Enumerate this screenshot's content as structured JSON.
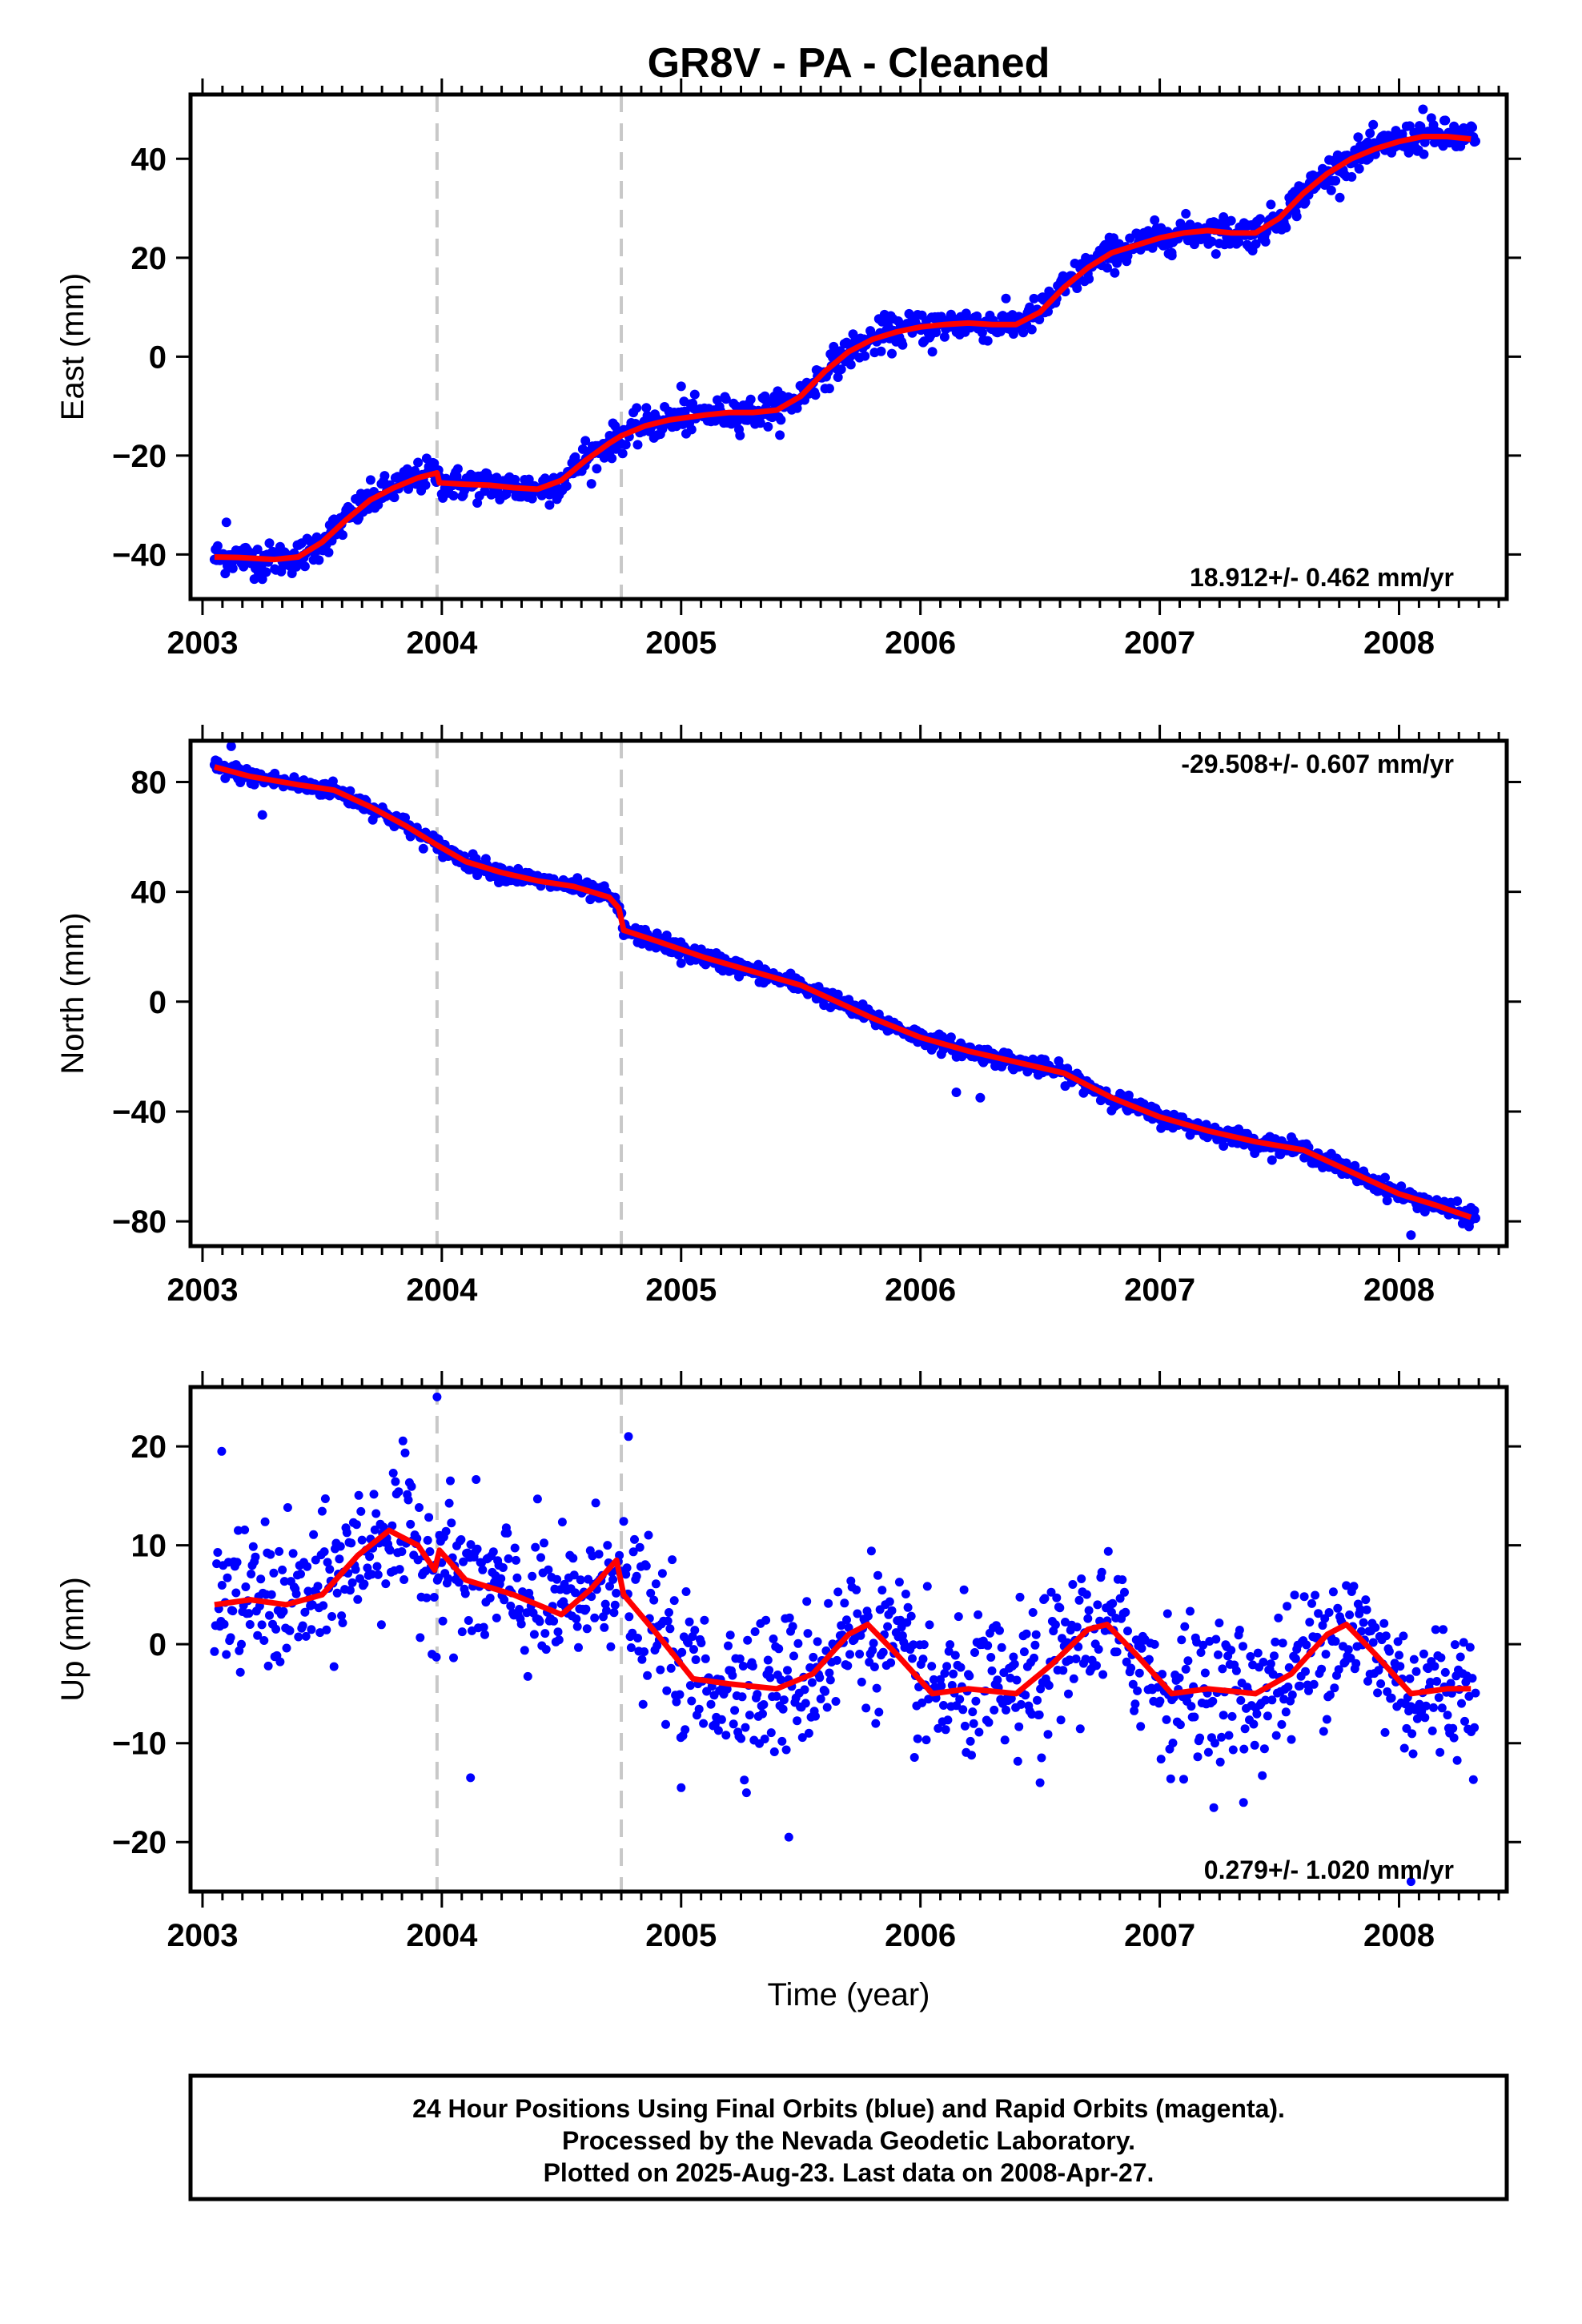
{
  "title": "GR8V  - PA - Cleaned",
  "footer": {
    "line1": "24 Hour Positions Using Final Orbits (blue) and Rapid Orbits (magenta).",
    "line2": "Processed by the Nevada Geodetic Laboratory.",
    "line3": "Plotted on 2025-Aug-23. Last data on 2008-Apr-27."
  },
  "colors": {
    "data": "#0000ff",
    "model": "#ff0000",
    "steps": "#c8c8c8",
    "frame": "#000000"
  },
  "chart_data": [
    {
      "type": "scatter",
      "ylabel": "East (mm)",
      "xlabel": "",
      "xlim": [
        2002.95,
        2008.45
      ],
      "ylim": [
        -49,
        53
      ],
      "yticks": [
        -40,
        -20,
        0,
        20,
        40
      ],
      "xticks": [
        2003,
        2004,
        2005,
        2006,
        2007,
        2008
      ],
      "xtick_labels": [
        "2003",
        "2004",
        "2005",
        "2006",
        "2007",
        "2008"
      ],
      "rate": "18.912+/- 0.462 mm/yr",
      "rate_position": "bottom-right",
      "step_epochs": [
        2003.98,
        2004.75
      ],
      "model": [
        [
          2003.05,
          -40.5
        ],
        [
          2003.15,
          -40.6
        ],
        [
          2003.3,
          -41
        ],
        [
          2003.4,
          -40.5
        ],
        [
          2003.5,
          -37.5
        ],
        [
          2003.6,
          -33
        ],
        [
          2003.7,
          -29
        ],
        [
          2003.8,
          -26.5
        ],
        [
          2003.9,
          -24.5
        ],
        [
          2003.98,
          -23.5
        ],
        [
          2003.99,
          -25.5
        ],
        [
          2004.1,
          -25.8
        ],
        [
          2004.2,
          -26
        ],
        [
          2004.3,
          -26.5
        ],
        [
          2004.4,
          -26.8
        ],
        [
          2004.5,
          -25
        ],
        [
          2004.6,
          -21
        ],
        [
          2004.7,
          -17.5
        ],
        [
          2004.75,
          -16
        ],
        [
          2004.85,
          -14
        ],
        [
          2004.95,
          -12.8
        ],
        [
          2005.1,
          -11.8
        ],
        [
          2005.2,
          -11.3
        ],
        [
          2005.3,
          -11.3
        ],
        [
          2005.4,
          -10.8
        ],
        [
          2005.5,
          -8
        ],
        [
          2005.6,
          -3
        ],
        [
          2005.7,
          1
        ],
        [
          2005.8,
          3.5
        ],
        [
          2005.9,
          5
        ],
        [
          2006.0,
          6
        ],
        [
          2006.1,
          6.5
        ],
        [
          2006.2,
          6.8
        ],
        [
          2006.3,
          6.5
        ],
        [
          2006.4,
          6.5
        ],
        [
          2006.5,
          9
        ],
        [
          2006.6,
          14
        ],
        [
          2006.7,
          18
        ],
        [
          2006.8,
          21
        ],
        [
          2006.9,
          22.5
        ],
        [
          2007.0,
          24
        ],
        [
          2007.1,
          25
        ],
        [
          2007.2,
          25.5
        ],
        [
          2007.3,
          25
        ],
        [
          2007.4,
          25
        ],
        [
          2007.5,
          28
        ],
        [
          2007.6,
          33
        ],
        [
          2007.7,
          37
        ],
        [
          2007.8,
          40
        ],
        [
          2007.9,
          42
        ],
        [
          2008.0,
          43.5
        ],
        [
          2008.1,
          44.5
        ],
        [
          2008.2,
          44.5
        ],
        [
          2008.3,
          44
        ]
      ],
      "noise": 1.6,
      "outliers": [
        [
          2003.1,
          -33.5
        ],
        [
          2003.25,
          -45
        ],
        [
          2003.6,
          -31
        ],
        [
          2004.45,
          -30
        ],
        [
          2004.6,
          -17
        ],
        [
          2005.0,
          -6
        ],
        [
          2005.35,
          -8
        ],
        [
          2005.85,
          8.5
        ],
        [
          2006.05,
          1
        ],
        [
          2007.05,
          21
        ],
        [
          2008.1,
          50
        ]
      ]
    },
    {
      "type": "scatter",
      "ylabel": "North (mm)",
      "xlabel": "",
      "xlim": [
        2002.95,
        2008.45
      ],
      "ylim": [
        -89,
        95
      ],
      "yticks": [
        -80,
        -40,
        0,
        40,
        80
      ],
      "xticks": [
        2003,
        2004,
        2005,
        2006,
        2007,
        2008
      ],
      "xtick_labels": [
        "2003",
        "2004",
        "2005",
        "2006",
        "2007",
        "2008"
      ],
      "rate": "-29.508+/- 0.607 mm/yr",
      "rate_position": "top-right",
      "step_epochs": [
        2003.98,
        2004.75
      ],
      "model": [
        [
          2003.05,
          85.5
        ],
        [
          2003.2,
          82
        ],
        [
          2003.4,
          79
        ],
        [
          2003.55,
          77
        ],
        [
          2003.7,
          71
        ],
        [
          2003.85,
          64
        ],
        [
          2003.98,
          57
        ],
        [
          2004.1,
          51
        ],
        [
          2004.25,
          47
        ],
        [
          2004.4,
          44
        ],
        [
          2004.55,
          42
        ],
        [
          2004.7,
          38
        ],
        [
          2004.74,
          34
        ],
        [
          2004.76,
          26
        ],
        [
          2004.9,
          22
        ],
        [
          2005.1,
          16
        ],
        [
          2005.3,
          11
        ],
        [
          2005.5,
          6
        ],
        [
          2005.65,
          0
        ],
        [
          2005.8,
          -6
        ],
        [
          2006.0,
          -13
        ],
        [
          2006.2,
          -18
        ],
        [
          2006.4,
          -22
        ],
        [
          2006.6,
          -26
        ],
        [
          2006.8,
          -35
        ],
        [
          2007.0,
          -42
        ],
        [
          2007.2,
          -47
        ],
        [
          2007.4,
          -51
        ],
        [
          2007.6,
          -54
        ],
        [
          2007.8,
          -62
        ],
        [
          2008.0,
          -70
        ],
        [
          2008.15,
          -74
        ],
        [
          2008.3,
          -78.5
        ]
      ],
      "noise": 1.5,
      "outliers": [
        [
          2003.12,
          93
        ],
        [
          2003.25,
          68
        ],
        [
          2005.0,
          14
        ],
        [
          2006.15,
          -33
        ],
        [
          2006.25,
          -35
        ],
        [
          2007.6,
          -52
        ],
        [
          2008.05,
          -85
        ],
        [
          2008.3,
          -75
        ]
      ]
    },
    {
      "type": "scatter",
      "ylabel": "Up (mm)",
      "xlabel": "Time (year)",
      "xlim": [
        2002.95,
        2008.45
      ],
      "ylim": [
        -25,
        26
      ],
      "yticks": [
        -20,
        -10,
        0,
        10,
        20
      ],
      "xticks": [
        2003,
        2004,
        2005,
        2006,
        2007,
        2008
      ],
      "xtick_labels": [
        "2003",
        "2004",
        "2005",
        "2006",
        "2007",
        "2008"
      ],
      "rate": "0.279+/- 1.020 mm/yr",
      "rate_position": "bottom-right",
      "step_epochs": [
        2003.98,
        2004.75
      ],
      "model": [
        [
          2003.05,
          4
        ],
        [
          2003.2,
          4.5
        ],
        [
          2003.35,
          4
        ],
        [
          2003.5,
          5
        ],
        [
          2003.65,
          9
        ],
        [
          2003.78,
          11.5
        ],
        [
          2003.9,
          10
        ],
        [
          2003.97,
          7.5
        ],
        [
          2003.99,
          9.5
        ],
        [
          2004.1,
          6.5
        ],
        [
          2004.3,
          5
        ],
        [
          2004.5,
          3
        ],
        [
          2004.62,
          5.5
        ],
        [
          2004.73,
          8.5
        ],
        [
          2004.76,
          5
        ],
        [
          2004.9,
          1
        ],
        [
          2005.05,
          -3.5
        ],
        [
          2005.2,
          -4
        ],
        [
          2005.4,
          -4.5
        ],
        [
          2005.55,
          -3
        ],
        [
          2005.7,
          1
        ],
        [
          2005.78,
          2
        ],
        [
          2005.9,
          -1
        ],
        [
          2006.05,
          -5
        ],
        [
          2006.2,
          -4.5
        ],
        [
          2006.4,
          -5
        ],
        [
          2006.55,
          -2
        ],
        [
          2006.7,
          1.5
        ],
        [
          2006.78,
          2
        ],
        [
          2006.9,
          -1
        ],
        [
          2007.05,
          -5
        ],
        [
          2007.2,
          -4.5
        ],
        [
          2007.4,
          -5
        ],
        [
          2007.55,
          -3
        ],
        [
          2007.7,
          1
        ],
        [
          2007.78,
          2
        ],
        [
          2007.9,
          -1
        ],
        [
          2008.05,
          -5
        ],
        [
          2008.2,
          -4.5
        ],
        [
          2008.3,
          -4.5
        ]
      ],
      "noise": 3.6,
      "outliers": [
        [
          2003.08,
          19.5
        ],
        [
          2003.98,
          25
        ],
        [
          2004.12,
          -13.5
        ],
        [
          2004.78,
          21
        ],
        [
          2005.0,
          -14.5
        ],
        [
          2005.45,
          -19.5
        ],
        [
          2006.5,
          -14
        ],
        [
          2007.35,
          -16
        ],
        [
          2008.05,
          -24
        ]
      ]
    }
  ]
}
